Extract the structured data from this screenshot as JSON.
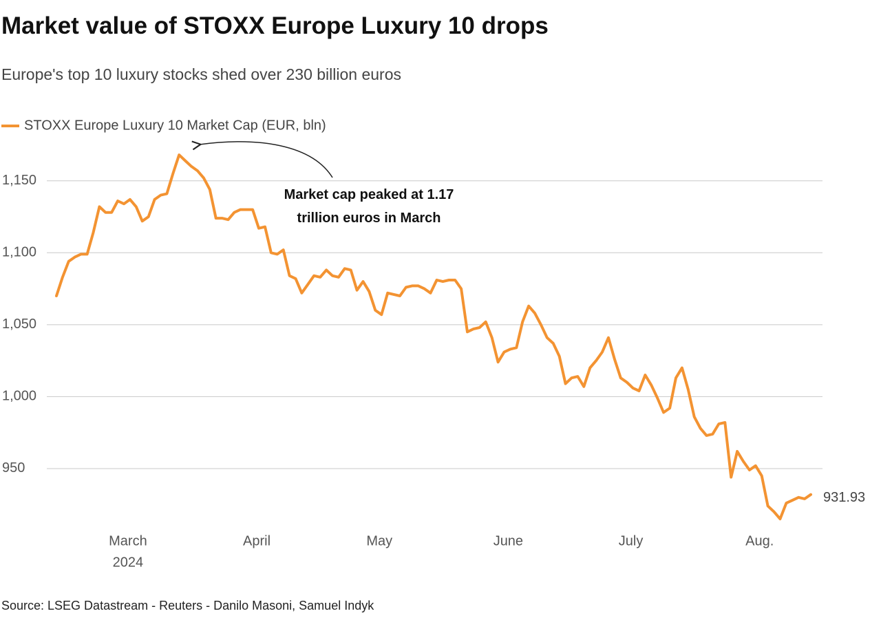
{
  "chart_data": {
    "type": "line",
    "title": "Market value of STOXX Europe Luxury 10 drops",
    "subtitle": "Europe's top 10 luxury stocks shed over 230 billion euros",
    "source": "Source: LSEG Datastream - Reuters - Danilo Masoni, Samuel Indyk",
    "annotation": "Market cap peaked at 1.17 trillion euros in March",
    "year_label": "2024",
    "categories": [
      null,
      null,
      null,
      null,
      null,
      null,
      null,
      null,
      null,
      null,
      null,
      null,
      "March",
      null,
      null,
      null,
      null,
      null,
      null,
      null,
      null,
      null,
      null,
      null,
      null,
      null,
      null,
      null,
      null,
      null,
      null,
      null,
      null,
      "April",
      null,
      null,
      null,
      null,
      null,
      null,
      null,
      null,
      null,
      null,
      null,
      null,
      null,
      null,
      null,
      null,
      null,
      null,
      null,
      "May",
      null,
      null,
      null,
      null,
      null,
      null,
      null,
      null,
      null,
      null,
      null,
      null,
      null,
      null,
      null,
      null,
      null,
      null,
      null,
      null,
      "June",
      null,
      null,
      null,
      null,
      null,
      null,
      null,
      null,
      null,
      null,
      null,
      null,
      null,
      null,
      null,
      null,
      null,
      null,
      null,
      "July",
      null,
      null,
      null,
      null,
      null,
      null,
      null,
      null,
      null,
      null,
      null,
      null,
      null,
      null,
      null,
      null,
      null,
      null,
      null,
      null,
      "Aug.",
      null,
      null,
      null,
      null,
      null,
      null,
      null,
      null
    ],
    "series": [
      {
        "name": "STOXX Europe Luxury 10 Market Cap (EUR, bln)",
        "color": "#f39332",
        "values": [
          1070,
          1083,
          1094,
          1097,
          1099,
          1099,
          1114,
          1132,
          1128,
          1128,
          1136,
          1134,
          1137,
          1132,
          1122,
          1125,
          1137,
          1140,
          1141,
          1155,
          1168,
          1164,
          1160,
          1157,
          1152,
          1144,
          1124,
          1124,
          1123,
          1128,
          1130,
          1130,
          1130,
          1117,
          1118,
          1100,
          1099,
          1102,
          1084,
          1082,
          1072,
          1078,
          1084,
          1083,
          1088,
          1084,
          1083,
          1089,
          1088,
          1074,
          1080,
          1073,
          1060,
          1057,
          1072,
          1071,
          1070,
          1076,
          1077,
          1077,
          1075,
          1072,
          1081,
          1080,
          1081,
          1081,
          1075,
          1045,
          1047,
          1048,
          1052,
          1041,
          1024,
          1031,
          1033,
          1034,
          1052,
          1063,
          1058,
          1050,
          1041,
          1037,
          1028,
          1009,
          1013,
          1014,
          1007,
          1020,
          1025,
          1031,
          1041,
          1026,
          1013,
          1010,
          1006,
          1004,
          1015,
          1008,
          999,
          989,
          992,
          1013,
          1020,
          1005,
          986,
          978,
          973,
          974,
          981,
          982,
          944,
          962,
          955,
          949,
          952,
          945,
          924,
          920,
          915,
          926,
          928,
          930,
          929,
          931.93
        ]
      }
    ],
    "ylim": [
      910,
      1180
    ],
    "yticks": [
      950,
      {
        "value": 1000,
        "label": "1,000"
      },
      {
        "value": 1050,
        "label": "1,050"
      },
      {
        "value": 1100,
        "label": "1,100"
      },
      {
        "value": 1150,
        "label": "1,150"
      }
    ],
    "grid": true
  }
}
